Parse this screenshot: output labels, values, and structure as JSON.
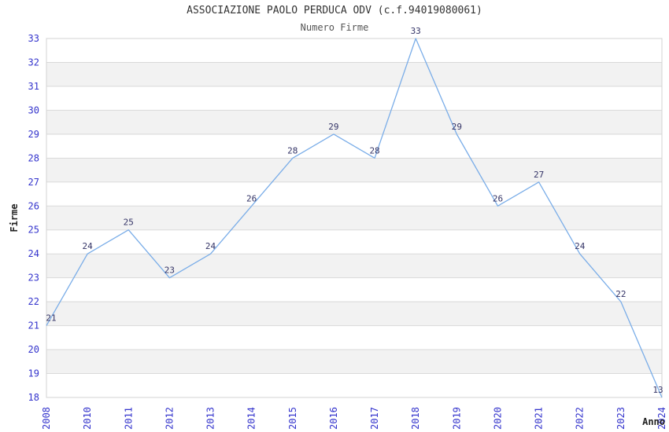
{
  "header": {
    "title": "ASSOCIAZIONE PAOLO PERDUCA ODV (c.f.94019080061)",
    "subtitle": "Numero Firme"
  },
  "chart_data": {
    "type": "line",
    "title": "ASSOCIAZIONE PAOLO PERDUCA ODV (c.f.94019080061)",
    "subtitle": "Numero Firme",
    "xlabel": "Anno",
    "ylabel": "Firme",
    "categories": [
      "2008",
      "2010",
      "2011",
      "2012",
      "2013",
      "2014",
      "2015",
      "2016",
      "2017",
      "2018",
      "2019",
      "2020",
      "2021",
      "2022",
      "2023",
      "2024"
    ],
    "values": [
      21,
      24,
      25,
      23,
      24,
      26,
      28,
      29,
      28,
      33,
      29,
      26,
      27,
      24,
      22,
      13
    ],
    "point_labels": [
      "21",
      "24",
      "25",
      "23",
      "24",
      "26",
      "28",
      "29",
      "28",
      "33",
      "29",
      "26",
      "27",
      "24",
      "22",
      "13"
    ],
    "ylim": [
      18,
      33
    ],
    "y_ticks": [
      18,
      19,
      20,
      21,
      22,
      23,
      24,
      25,
      26,
      27,
      28,
      29,
      30,
      31,
      32,
      33
    ],
    "grid": "horizontal",
    "interlaced_bands": true,
    "legend": "none",
    "markers": "none",
    "clamp_below_ymin": true
  },
  "colors": {
    "background": "#ffffff",
    "line": "#7aade8",
    "tick_label": "#3333cc",
    "point_label": "#333366",
    "band": "#f2f2f2",
    "gridline": "#d9d9d9",
    "plot_border": "#d3d3d3",
    "title": "#333333",
    "subtitle": "#555555",
    "axis_title": "#222222"
  }
}
